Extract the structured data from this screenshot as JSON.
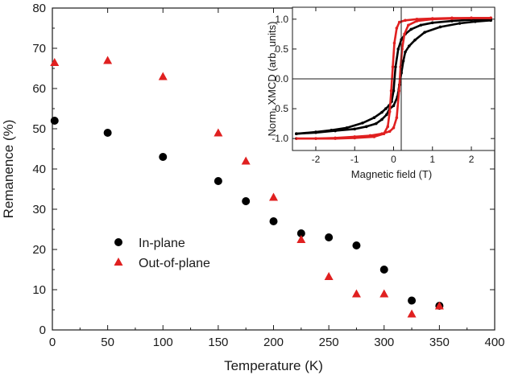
{
  "chart_data": [
    {
      "type": "scatter",
      "xlabel": "Temperature (K)",
      "ylabel": "Remanence (%)",
      "xlim": [
        0,
        400
      ],
      "ylim": [
        0,
        80
      ],
      "xticks": [
        "0",
        "50",
        "100",
        "150",
        "200",
        "250",
        "300",
        "350",
        "400"
      ],
      "yticks": [
        "0",
        "10",
        "20",
        "30",
        "40",
        "50",
        "60",
        "70",
        "80"
      ],
      "grid": false,
      "legend": "center-left",
      "series": [
        {
          "name": "In-plane",
          "marker": "circle",
          "color": "#000000",
          "x": [
            2,
            50,
            100,
            150,
            175,
            200,
            225,
            250,
            275,
            300,
            325,
            350
          ],
          "y": [
            52,
            49,
            43,
            37,
            32,
            27,
            24,
            23,
            21,
            15,
            7.3,
            6
          ]
        },
        {
          "name": "Out-of-plane",
          "marker": "triangle",
          "color": "#e02020",
          "x": [
            2,
            50,
            100,
            150,
            175,
            200,
            225,
            250,
            275,
            300,
            325,
            350
          ],
          "y": [
            66.5,
            67,
            63,
            49,
            42,
            33,
            22.5,
            13.3,
            9,
            9,
            4,
            6
          ]
        }
      ]
    },
    {
      "type": "line",
      "xlabel": "Magnetic field (T)",
      "ylabel": "Norm. XMCD (arb. units)",
      "xlim": [
        -2.6,
        2.6
      ],
      "ylim": [
        -1.2,
        1.2
      ],
      "xticks": [
        "-2",
        "-1",
        "0",
        "1",
        "2"
      ],
      "yticks": [
        "-1.0",
        "-0.5",
        "0.0",
        "0.5",
        "1.0"
      ],
      "grid": false,
      "series": [
        {
          "color": "#000000",
          "branch_down": [
            [
              2.5,
              1.0
            ],
            [
              2.0,
              0.99
            ],
            [
              1.5,
              0.97
            ],
            [
              1.0,
              0.94
            ],
            [
              0.7,
              0.9
            ],
            [
              0.45,
              0.83
            ],
            [
              0.3,
              0.75
            ],
            [
              0.2,
              0.66
            ],
            [
              0.12,
              0.5
            ],
            [
              0.05,
              0.2
            ],
            [
              0.0,
              -0.2
            ],
            [
              -0.05,
              -0.38
            ],
            [
              -0.12,
              -0.45
            ],
            [
              -0.2,
              -0.5
            ],
            [
              -0.3,
              -0.56
            ],
            [
              -0.5,
              -0.65
            ],
            [
              -0.8,
              -0.74
            ],
            [
              -1.2,
              -0.82
            ],
            [
              -1.6,
              -0.86
            ],
            [
              -2.0,
              -0.89
            ],
            [
              -2.5,
              -0.92
            ]
          ],
          "branch_up": [
            [
              -2.5,
              -0.92
            ],
            [
              -2.0,
              -0.9
            ],
            [
              -1.5,
              -0.87
            ],
            [
              -1.0,
              -0.84
            ],
            [
              -0.7,
              -0.8
            ],
            [
              -0.45,
              -0.75
            ],
            [
              -0.3,
              -0.68
            ],
            [
              -0.18,
              -0.6
            ],
            [
              -0.1,
              -0.5
            ],
            [
              0.0,
              -0.45
            ],
            [
              0.1,
              -0.3
            ],
            [
              0.15,
              -0.1
            ],
            [
              0.2,
              0.1
            ],
            [
              0.25,
              0.3
            ],
            [
              0.3,
              0.45
            ],
            [
              0.4,
              0.55
            ],
            [
              0.55,
              0.65
            ],
            [
              0.8,
              0.78
            ],
            [
              1.2,
              0.87
            ],
            [
              1.7,
              0.93
            ],
            [
              2.1,
              0.96
            ],
            [
              2.5,
              0.98
            ]
          ]
        },
        {
          "color": "#e02020",
          "branch_down": [
            [
              2.5,
              1.02
            ],
            [
              2.0,
              1.02
            ],
            [
              1.5,
              1.02
            ],
            [
              1.0,
              1.01
            ],
            [
              0.6,
              1.0
            ],
            [
              0.3,
              0.98
            ],
            [
              0.15,
              0.95
            ],
            [
              0.08,
              0.85
            ],
            [
              0.02,
              0.6
            ],
            [
              -0.02,
              0.2
            ],
            [
              -0.06,
              -0.2
            ],
            [
              -0.1,
              -0.55
            ],
            [
              -0.15,
              -0.8
            ],
            [
              -0.25,
              -0.92
            ],
            [
              -0.5,
              -0.97
            ],
            [
              -1.0,
              -0.99
            ],
            [
              -1.5,
              -1.0
            ],
            [
              -2.0,
              -1.0
            ],
            [
              -2.5,
              -1.0
            ]
          ],
          "branch_up": [
            [
              -2.5,
              -1.0
            ],
            [
              -2.0,
              -1.0
            ],
            [
              -1.5,
              -0.99
            ],
            [
              -1.0,
              -0.97
            ],
            [
              -0.6,
              -0.95
            ],
            [
              -0.3,
              -0.92
            ],
            [
              -0.1,
              -0.88
            ],
            [
              0.0,
              -0.82
            ],
            [
              0.08,
              -0.65
            ],
            [
              0.14,
              -0.2
            ],
            [
              0.18,
              0.2
            ],
            [
              0.22,
              0.5
            ],
            [
              0.28,
              0.75
            ],
            [
              0.38,
              0.9
            ],
            [
              0.6,
              0.97
            ],
            [
              1.0,
              1.0
            ],
            [
              1.5,
              1.01
            ],
            [
              2.0,
              1.02
            ],
            [
              2.5,
              1.02
            ]
          ]
        }
      ]
    }
  ]
}
